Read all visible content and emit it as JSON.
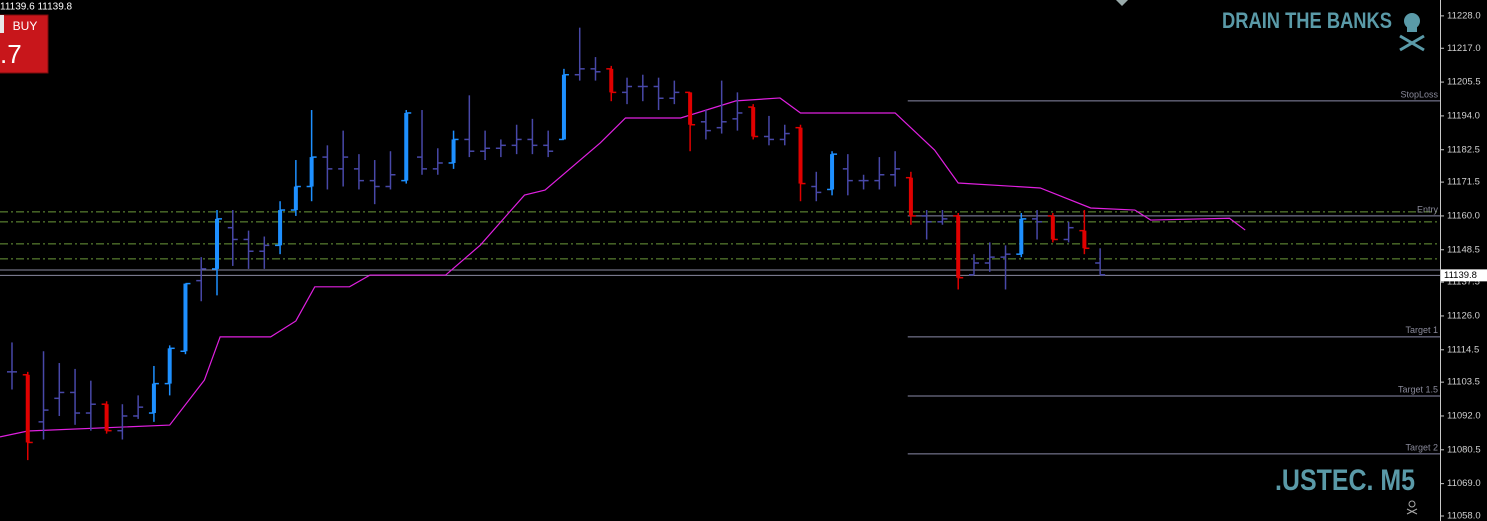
{
  "chart_data": {
    "type": "ohlc",
    "title": "DRAIN THE BANKS",
    "subtitle": ".USTEC. M5",
    "quote": "11139.6 11139.8",
    "button_label": "BUY",
    "button_price": ".7",
    "ylim": [
      11056.3,
      11233.4
    ],
    "xlim": [
      -0.76,
      90.55
    ],
    "yticks": [
      {
        "value": 11228,
        "label": "11228.0"
      },
      {
        "value": 11217,
        "label": "11217.0"
      },
      11205.5,
      {
        "value": 11194,
        "label": "11194.0"
      },
      11182.5,
      11171.5,
      {
        "value": 11160,
        "label": "11160.0"
      },
      11148.5,
      11137.5,
      {
        "value": 11126,
        "label": "11126.0"
      },
      11114.5,
      11103.5,
      {
        "value": 11092,
        "label": "11092.0"
      },
      11080.5,
      {
        "value": 11069,
        "label": "11069.0"
      },
      {
        "value": 11058,
        "label": "11058.0"
      }
    ],
    "current_price": 11139.8,
    "open": [
      11107,
      11106,
      11090,
      11098,
      11100,
      11093,
      11096,
      11087,
      11092,
      11093,
      11103,
      11114,
      11138,
      11142,
      11156,
      11152,
      11148,
      11150,
      11162,
      11170,
      11180,
      11176,
      11176,
      11172,
      11170,
      11172,
      11180,
      11176,
      11178,
      11186,
      11182,
      11183,
      11184,
      11186,
      11184,
      11186,
      11208,
      11210,
      11210,
      11202,
      11204,
      11204,
      11200,
      11202,
      11192,
      11190,
      11193,
      11197,
      11187,
      11186,
      11190,
      11170,
      11169,
      11176,
      11172,
      11172,
      11174,
      11173,
      11160,
      11158,
      11160,
      11140,
      11144,
      11146,
      11147,
      11159,
      11160,
      11152,
      11155,
      11144
    ],
    "high": [
      11117,
      11107,
      11114,
      11110,
      11108,
      11104,
      11097,
      11096,
      11099,
      11109,
      11116,
      11137,
      11146,
      11162,
      11162,
      11155,
      11153,
      11165,
      11179,
      11196,
      11184,
      11189,
      11181,
      11179,
      11182,
      11196,
      11196,
      11183,
      11189,
      11201,
      11189,
      11186,
      11191,
      11193,
      11189,
      11210,
      11224,
      11214,
      11211,
      11207,
      11208,
      11207,
      11206,
      11202,
      11196,
      11206,
      11202,
      11198,
      11194,
      11191,
      11191,
      11175,
      11182,
      11181,
      11174,
      11180,
      11182,
      11175,
      11162,
      11162,
      11161,
      11147,
      11151,
      11150,
      11161,
      11162,
      11161,
      11158,
      11162,
      11149
    ],
    "low": [
      11101,
      11077,
      11084,
      11092,
      11089,
      11087,
      11086,
      11084,
      11091,
      11090,
      11099,
      11113,
      11131,
      11133,
      11143,
      11142,
      11142,
      11147,
      11160,
      11165,
      11169,
      11170,
      11169,
      11164,
      11169,
      11171,
      11174,
      11174,
      11176,
      11180,
      11179,
      11180,
      11181,
      11181,
      11180,
      11186,
      11206,
      11206,
      11199,
      11198,
      11199,
      11196,
      11198,
      11182,
      11186,
      11188,
      11189,
      11186,
      11184,
      11184,
      11165,
      11165,
      11167,
      11167,
      11169,
      11169,
      11170,
      11157,
      11152,
      11157,
      11135,
      11140,
      11141,
      11135,
      11146,
      11152,
      11151,
      11151,
      11147,
      11140
    ],
    "close": [
      11107,
      11083,
      11094,
      11100,
      11093,
      11096,
      11087,
      11092,
      11095,
      11103,
      11115,
      11137,
      11142,
      11159,
      11152,
      11148,
      11150,
      11162,
      11170,
      11180,
      11176,
      11180,
      11172,
      11170,
      11174,
      11195,
      11176,
      11178,
      11186,
      11182,
      11183,
      11184,
      11186,
      11184,
      11182,
      11208,
      11210,
      11209,
      11202,
      11204,
      11204,
      11200,
      11202,
      11191,
      11189,
      11192,
      11195,
      11187,
      11186,
      11188,
      11171,
      11168,
      11181,
      11172,
      11172,
      11174,
      11176,
      11160,
      11158,
      11159,
      11139,
      11144,
      11146,
      11147,
      11159,
      11158,
      11152,
      11156,
      11149,
      11140
    ],
    "colors": [
      "#4848a8",
      "#e00000",
      "#4848a8",
      "#4848a8",
      "#4848a8",
      "#4848a8",
      "#e00000",
      "#4848a8",
      "#4848a8",
      "#1e90ff",
      "#1e90ff",
      "#1e90ff",
      "#4848a8",
      "#1e90ff",
      "#4848a8",
      "#4848a8",
      "#4848a8",
      "#1e90ff",
      "#1e90ff",
      "#1e90ff",
      "#4848a8",
      "#4848a8",
      "#4848a8",
      "#4848a8",
      "#4848a8",
      "#1e90ff",
      "#4848a8",
      "#4848a8",
      "#1e90ff",
      "#4848a8",
      "#4848a8",
      "#4848a8",
      "#4848a8",
      "#4848a8",
      "#4848a8",
      "#1e90ff",
      "#4848a8",
      "#4848a8",
      "#e00000",
      "#4848a8",
      "#4848a8",
      "#4848a8",
      "#4848a8",
      "#e00000",
      "#4848a8",
      "#4848a8",
      "#4848a8",
      "#e00000",
      "#4848a8",
      "#4848a8",
      "#e00000",
      "#4848a8",
      "#1e90ff",
      "#4848a8",
      "#4848a8",
      "#4848a8",
      "#4848a8",
      "#e00000",
      "#4848a8",
      "#4848a8",
      "#e00000",
      "#4848a8",
      "#4848a8",
      "#4848a8",
      "#1e90ff",
      "#4848a8",
      "#e00000",
      "#4848a8",
      "#e00000",
      "#4848a8"
    ],
    "trail": {
      "color": "#e020e0",
      "x": [
        -0.76,
        1,
        10,
        12.2,
        13.2,
        16.4,
        18,
        19.2,
        21.4,
        22.7,
        27.5,
        29.7,
        32.5,
        33.8,
        37.3,
        38.9,
        42.4,
        45.9,
        48.7,
        50,
        56,
        58.5,
        60,
        65.2,
        68.4,
        71.2,
        72.2,
        77.2,
        78.2
      ],
      "values": [
        11084.9,
        11086.9,
        11088.9,
        11104.2,
        11118.9,
        11118.9,
        11124.3,
        11135.9,
        11135.9,
        11139.9,
        11139.9,
        11150.1,
        11167.1,
        11168.8,
        11184.8,
        11193.3,
        11193.3,
        11199.1,
        11200.1,
        11195,
        11195,
        11182.4,
        11171.2,
        11169.5,
        11162.7,
        11162,
        11158.6,
        11159.2,
        11155.2
      ]
    },
    "levels": [
      {
        "label": "StopLoss",
        "value": 11199.1,
        "from": 56.8,
        "color": "#8a8aa8"
      },
      {
        "label": "Entry",
        "value": 11160,
        "from": 56.8,
        "color": "#8a8aa8"
      },
      {
        "label": "Target 1",
        "value": 11118.9,
        "from": 56.8,
        "color": "#8a8aa8"
      },
      {
        "label": "Target 1.5",
        "value": 11098.8,
        "from": 56.8,
        "color": "#8a8aa8"
      },
      {
        "label": "Target 2",
        "value": 11079.1,
        "from": 56.8,
        "color": "#8a8aa8"
      }
    ],
    "guides": [
      {
        "value": 11161.4,
        "color": "#6c9a3a"
      },
      {
        "value": 11158,
        "color": "#6c9a3a"
      },
      {
        "value": 11150.5,
        "color": "#6c9a3a"
      },
      {
        "value": 11145.4,
        "color": "#6c9a3a"
      }
    ],
    "price_lines": [
      {
        "value": 11141.6,
        "color": "#8a8aa0"
      },
      {
        "value": 11139.8,
        "color": "#8a8aa0"
      }
    ]
  }
}
